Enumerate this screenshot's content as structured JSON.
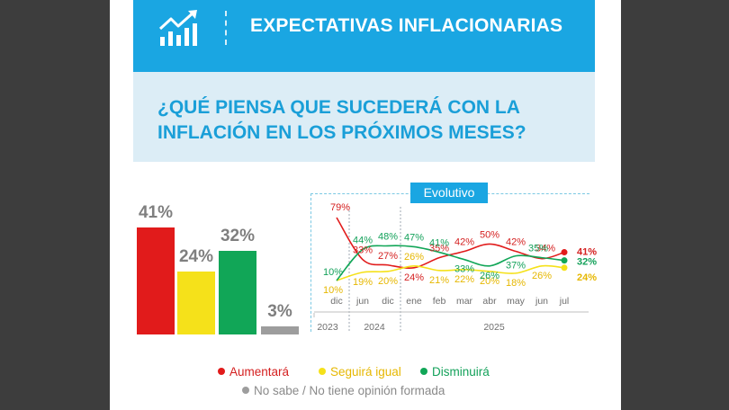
{
  "header": {
    "title": "EXPECTATIVAS INFLACIONARIAS",
    "icon": "growth-chart-icon"
  },
  "question": {
    "line1": "¿QUÉ PIENSA QUE SUCEDERÁ CON LA",
    "line2": "INFLACIÓN EN LOS PRÓXIMOS MESES?"
  },
  "evolutivo_label": "Evolutivo",
  "colors": {
    "aumentara": "#e11b1b",
    "seguira": "#f5e11a",
    "disminuira": "#11a657",
    "nosabe": "#9d9d9d",
    "aumentara_text": "#d41f1f",
    "seguira_text": "#e6b700",
    "disminuira_text": "#13a15a",
    "nosabe_text": "#8a8a8a"
  },
  "chart_data": [
    {
      "type": "bar",
      "categories": [
        "Aumentará",
        "Seguirá igual",
        "Disminuirá",
        "No sabe / No tiene opinión formada"
      ],
      "values": [
        41,
        24,
        32,
        3
      ],
      "labels": [
        "41%",
        "24%",
        "32%",
        "3%"
      ]
    },
    {
      "type": "line",
      "title": "Evolutivo",
      "x": [
        "dic",
        "jun",
        "dic",
        "ene",
        "feb",
        "mar",
        "abr",
        "may",
        "jun",
        "jul"
      ],
      "year_groups": [
        {
          "label": "2023",
          "start": 0,
          "end": 0
        },
        {
          "label": "2024",
          "start": 1,
          "end": 2
        },
        {
          "label": "2025",
          "start": 3,
          "end": 9
        }
      ],
      "series": [
        {
          "name": "Aumentará",
          "values": [
            79,
            33,
            27,
            24,
            35,
            42,
            50,
            42,
            34,
            41
          ],
          "labels": [
            "79%",
            "33%",
            "27%",
            "24%",
            "35%",
            "42%",
            "50%",
            "42%",
            "34%",
            "41%"
          ]
        },
        {
          "name": "Seguirá igual",
          "values": [
            10,
            19,
            20,
            26,
            21,
            22,
            20,
            18,
            26,
            24
          ],
          "labels": [
            "10%",
            "19%",
            "20%",
            "26%",
            "21%",
            "22%",
            "20%",
            "18%",
            "26%",
            "24%"
          ]
        },
        {
          "name": "Disminuirá",
          "values": [
            10,
            44,
            48,
            47,
            41,
            33,
            26,
            37,
            35,
            32
          ],
          "labels": [
            "10%",
            "44%",
            "48%",
            "47%",
            "41%",
            "33%",
            "26%",
            "37%",
            "35%",
            "32%"
          ]
        }
      ],
      "ylim": [
        0,
        90
      ]
    }
  ],
  "legend": {
    "aumentara": "Aumentará",
    "seguira": "Seguirá igual",
    "disminuira": "Disminuirá",
    "nosabe": "No sabe / No tiene opinión formada"
  }
}
